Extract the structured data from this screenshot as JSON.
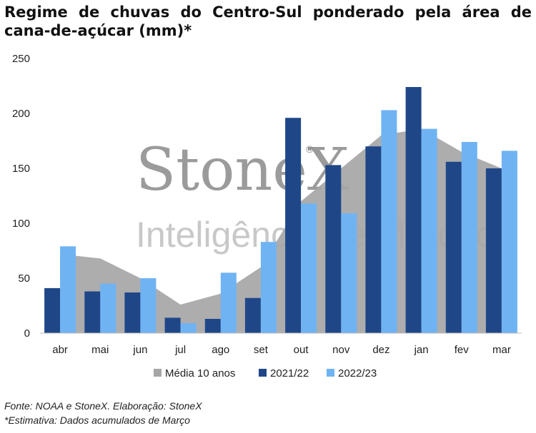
{
  "title": "Regime de chuvas do Centro-Sul ponderado pela área de cana-de-açúcar (mm)*",
  "watermark": {
    "brand": "StoneX",
    "registered": "®",
    "tagline": "Inteligência de Mercado"
  },
  "footer": {
    "source": "Fonte: NOAA e StoneX. Elaboração: StoneX",
    "note": "*Estimativa: Dados acumulados de Março"
  },
  "colors": {
    "area": "#a6a6a6",
    "bar_2122": "#1f4788",
    "bar_2223": "#6fb3f3"
  },
  "chart_data": {
    "type": "bar",
    "categories": [
      "abr",
      "mai",
      "jun",
      "jul",
      "ago",
      "set",
      "out",
      "nov",
      "dez",
      "jan",
      "fev",
      "mar"
    ],
    "series": [
      {
        "name": "Média 10 anos",
        "kind": "area",
        "values": [
          72,
          68,
          50,
          26,
          36,
          60,
          120,
          150,
          180,
          186,
          165,
          150
        ]
      },
      {
        "name": "2021/22",
        "kind": "bar",
        "values": [
          41,
          38,
          37,
          14,
          13,
          32,
          196,
          153,
          170,
          224,
          156,
          150
        ]
      },
      {
        "name": "2022/23",
        "kind": "bar",
        "values": [
          79,
          45,
          50,
          9,
          55,
          83,
          118,
          109,
          203,
          186,
          174,
          166
        ]
      }
    ],
    "ylim": [
      0,
      250
    ],
    "yticks": [
      0,
      50,
      100,
      150,
      200,
      250
    ],
    "grid": false,
    "legend": "bottom"
  }
}
